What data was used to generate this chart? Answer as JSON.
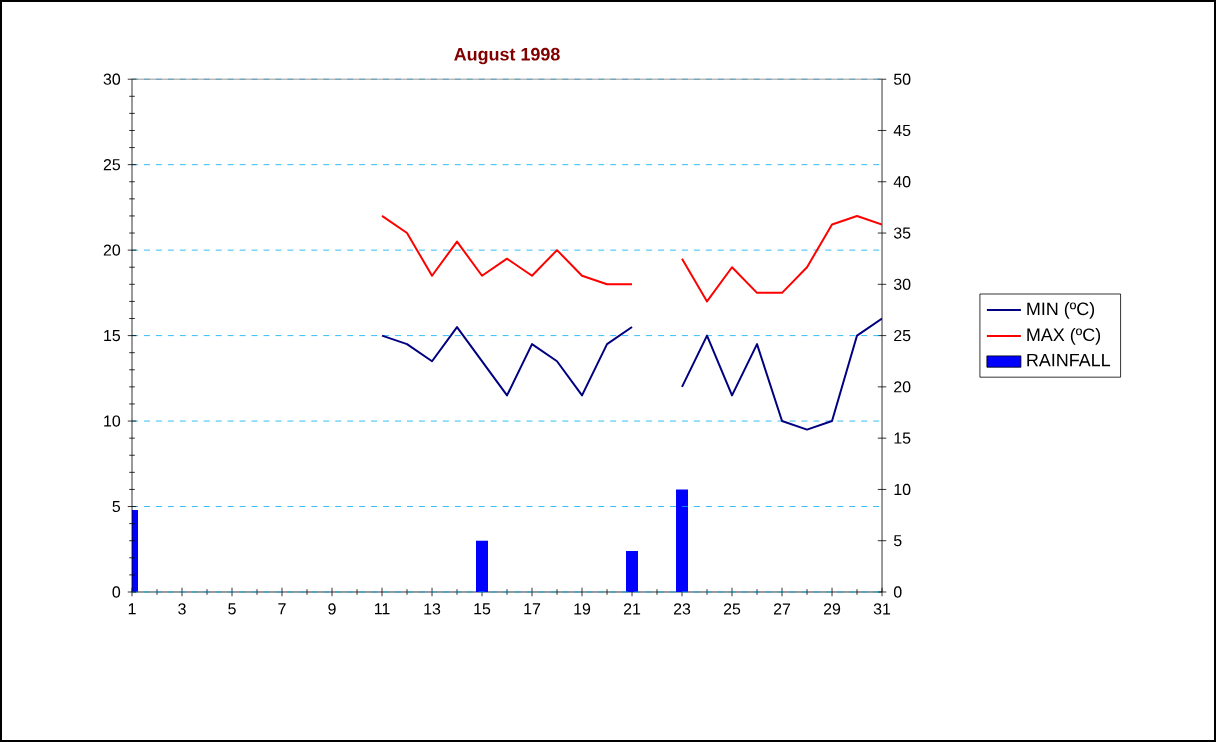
{
  "chart_data": {
    "type": "line",
    "title": "August 1998",
    "series": [
      {
        "name": "MIN (ºC)",
        "color": "#000080",
        "x": [
          11,
          12,
          13,
          14,
          15,
          16,
          17,
          18,
          19,
          20,
          21,
          22,
          23,
          24,
          25,
          26,
          27,
          28,
          29,
          30,
          31
        ],
        "values": [
          15,
          14.5,
          13.5,
          15.5,
          13.5,
          11.5,
          14.5,
          13.5,
          11.5,
          14.5,
          15.5,
          null,
          12,
          15,
          11.5,
          14.5,
          10,
          9.5,
          10,
          15,
          16
        ]
      },
      {
        "name": "MAX (ºC)",
        "color": "#ff0000",
        "x": [
          11,
          12,
          13,
          14,
          15,
          16,
          17,
          18,
          19,
          20,
          21,
          22,
          23,
          24,
          25,
          26,
          27,
          28,
          29,
          30,
          31
        ],
        "values": [
          22,
          21,
          18.5,
          20.5,
          18.5,
          19.5,
          18.5,
          20,
          18.5,
          18,
          18,
          null,
          19.5,
          17,
          19,
          17.5,
          17.5,
          19,
          21.5,
          22,
          21.5
        ]
      },
      {
        "name": "RAINFALL",
        "type": "bar",
        "axis": "y2",
        "color": "#0000ff",
        "x": [
          1,
          15,
          21,
          23
        ],
        "values": [
          8,
          5,
          4,
          10
        ]
      }
    ],
    "xlim": [
      1,
      31
    ],
    "xticks": [
      1,
      3,
      5,
      7,
      9,
      11,
      13,
      15,
      17,
      19,
      21,
      23,
      25,
      27,
      29,
      31
    ],
    "ylim": [
      0,
      30
    ],
    "yticks": [
      0,
      5,
      10,
      15,
      20,
      25,
      30
    ],
    "y2lim": [
      0,
      50
    ],
    "y2ticks": [
      0,
      5,
      10,
      15,
      20,
      25,
      30,
      35,
      40,
      45,
      50
    ],
    "grid": "y",
    "legend": "right"
  }
}
